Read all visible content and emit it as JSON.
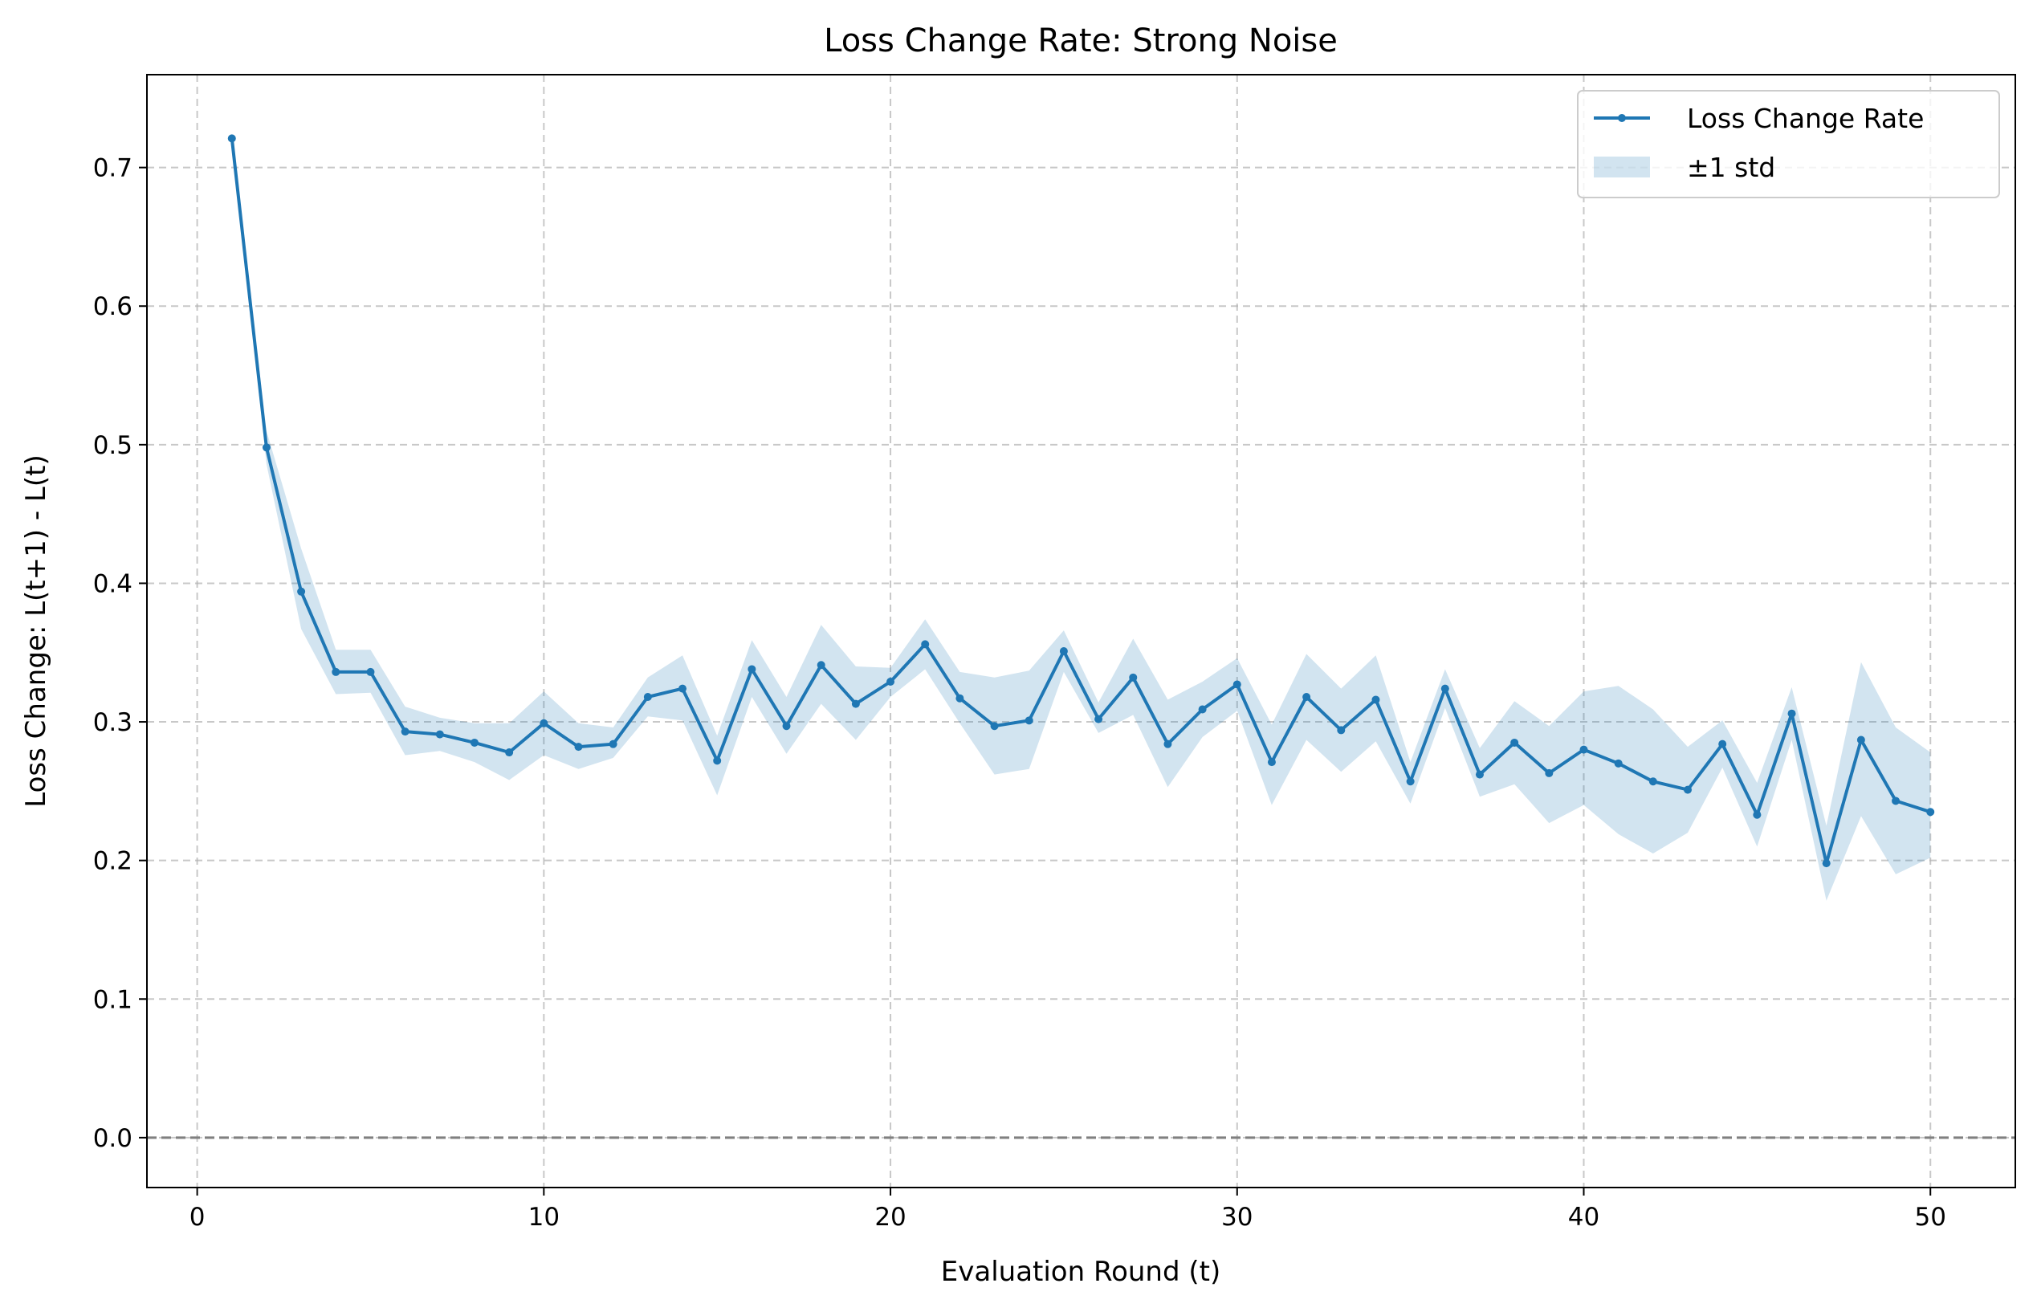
{
  "chart_data": {
    "type": "line",
    "title": "Loss Change Rate: Strong Noise",
    "xlabel": "Evaluation Round (t)",
    "ylabel": "Loss Change: L(t+1) - L(t)",
    "xlim": [
      -1.45,
      52.45
    ],
    "ylim": [
      -0.036,
      0.767
    ],
    "x_ticks": [
      0,
      10,
      20,
      30,
      40,
      50
    ],
    "y_ticks": [
      0.0,
      0.1,
      0.2,
      0.3,
      0.4,
      0.5,
      0.6,
      0.7
    ],
    "x_tick_labels": [
      "0",
      "10",
      "20",
      "30",
      "40",
      "50"
    ],
    "y_tick_labels": [
      "0.0",
      "0.1",
      "0.2",
      "0.3",
      "0.4",
      "0.5",
      "0.6",
      "0.7"
    ],
    "grid": true,
    "reference_line_y": 0.0,
    "legend_position": "top-right",
    "series": [
      {
        "name": "Loss Change Rate",
        "color": "#1f77b4",
        "x": [
          1,
          2,
          3,
          4,
          5,
          6,
          7,
          8,
          9,
          10,
          11,
          12,
          13,
          14,
          15,
          16,
          17,
          18,
          19,
          20,
          21,
          22,
          23,
          24,
          25,
          26,
          27,
          28,
          29,
          30,
          31,
          32,
          33,
          34,
          35,
          36,
          37,
          38,
          39,
          40,
          41,
          42,
          43,
          44,
          45,
          46,
          47,
          48,
          49,
          50
        ],
        "y": [
          0.721,
          0.498,
          0.394,
          0.336,
          0.336,
          0.293,
          0.291,
          0.285,
          0.278,
          0.299,
          0.282,
          0.284,
          0.318,
          0.324,
          0.272,
          0.338,
          0.297,
          0.341,
          0.313,
          0.329,
          0.356,
          0.317,
          0.297,
          0.301,
          0.351,
          0.302,
          0.332,
          0.284,
          0.309,
          0.327,
          0.271,
          0.318,
          0.294,
          0.316,
          0.257,
          0.324,
          0.262,
          0.285,
          0.263,
          0.28,
          0.27,
          0.257,
          0.251,
          0.284,
          0.233,
          0.306,
          0.198,
          0.287,
          0.243,
          0.235
        ]
      }
    ],
    "band": {
      "name": "±1 std",
      "color": "#1f77b4",
      "opacity": 0.2,
      "upper": [
        0.721,
        0.51,
        0.425,
        0.352,
        0.352,
        0.311,
        0.303,
        0.299,
        0.299,
        0.322,
        0.299,
        0.296,
        0.332,
        0.348,
        0.29,
        0.359,
        0.318,
        0.37,
        0.34,
        0.339,
        0.374,
        0.336,
        0.332,
        0.337,
        0.366,
        0.314,
        0.36,
        0.316,
        0.329,
        0.346,
        0.298,
        0.349,
        0.324,
        0.348,
        0.271,
        0.338,
        0.281,
        0.315,
        0.297,
        0.322,
        0.326,
        0.309,
        0.282,
        0.301,
        0.256,
        0.325,
        0.225,
        0.343,
        0.296,
        0.278
      ],
      "lower": [
        0.721,
        0.486,
        0.367,
        0.32,
        0.321,
        0.276,
        0.279,
        0.271,
        0.258,
        0.276,
        0.266,
        0.274,
        0.304,
        0.301,
        0.247,
        0.318,
        0.277,
        0.313,
        0.287,
        0.318,
        0.338,
        0.299,
        0.262,
        0.266,
        0.336,
        0.292,
        0.305,
        0.253,
        0.289,
        0.308,
        0.24,
        0.287,
        0.264,
        0.286,
        0.241,
        0.31,
        0.246,
        0.255,
        0.227,
        0.24,
        0.219,
        0.205,
        0.22,
        0.267,
        0.21,
        0.287,
        0.171,
        0.232,
        0.19,
        0.202
      ]
    },
    "legend_entries": [
      "Loss Change Rate",
      "±1 std"
    ]
  }
}
